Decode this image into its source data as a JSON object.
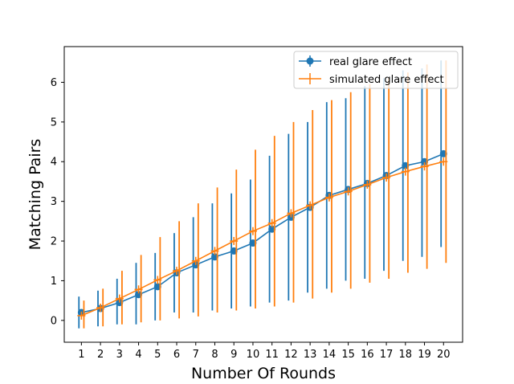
{
  "chart_data": {
    "type": "line",
    "xlabel": "Number Of Rounds",
    "ylabel": "Matching Pairs",
    "x": [
      1,
      2,
      3,
      4,
      5,
      6,
      7,
      8,
      9,
      10,
      11,
      12,
      13,
      14,
      15,
      16,
      17,
      18,
      19,
      20
    ],
    "xticks": [
      "1",
      "2",
      "3",
      "4",
      "5",
      "6",
      "7",
      "8",
      "9",
      "10",
      "11",
      "12",
      "13",
      "14",
      "15",
      "16",
      "17",
      "18",
      "19",
      "20"
    ],
    "yticks": [
      "0",
      "1",
      "2",
      "3",
      "4",
      "5",
      "6"
    ],
    "xlim": [
      0.1,
      21.0
    ],
    "ylim": [
      -0.55,
      6.9
    ],
    "grid": false,
    "legend_position": "upper right",
    "series": [
      {
        "name": "real glare effect",
        "color": "#1f77b4",
        "marker": "circle",
        "values": [
          0.2,
          0.3,
          0.45,
          0.65,
          0.85,
          1.2,
          1.4,
          1.6,
          1.75,
          1.95,
          2.3,
          2.6,
          2.85,
          3.15,
          3.3,
          3.45,
          3.65,
          3.9,
          4.0,
          4.2
        ],
        "err_low": [
          -0.2,
          -0.15,
          -0.1,
          -0.1,
          0.0,
          0.2,
          0.2,
          0.25,
          0.3,
          0.35,
          0.45,
          0.5,
          0.7,
          0.8,
          1.0,
          1.05,
          1.25,
          1.5,
          1.6,
          1.85
        ],
        "err_high": [
          0.6,
          0.75,
          1.05,
          1.45,
          1.7,
          2.2,
          2.6,
          2.95,
          3.2,
          3.55,
          4.15,
          4.7,
          5.0,
          5.5,
          5.6,
          5.9,
          6.1,
          6.3,
          6.35,
          6.55
        ]
      },
      {
        "name": "simulated glare effect",
        "color": "#ff7f0e",
        "marker": "plus",
        "values": [
          0.12,
          0.32,
          0.55,
          0.78,
          1.02,
          1.25,
          1.5,
          1.75,
          2.0,
          2.25,
          2.45,
          2.7,
          2.9,
          3.1,
          3.25,
          3.42,
          3.6,
          3.75,
          3.88,
          4.0
        ],
        "err_low": [
          -0.2,
          -0.15,
          -0.1,
          -0.05,
          0.0,
          0.05,
          0.1,
          0.2,
          0.25,
          0.3,
          0.35,
          0.45,
          0.55,
          0.7,
          0.8,
          0.95,
          1.05,
          1.2,
          1.3,
          1.45
        ],
        "err_high": [
          0.5,
          0.8,
          1.25,
          1.65,
          2.1,
          2.5,
          2.95,
          3.35,
          3.8,
          4.3,
          4.65,
          5.0,
          5.3,
          5.55,
          5.75,
          5.95,
          6.1,
          6.25,
          6.45,
          6.55
        ]
      }
    ]
  }
}
